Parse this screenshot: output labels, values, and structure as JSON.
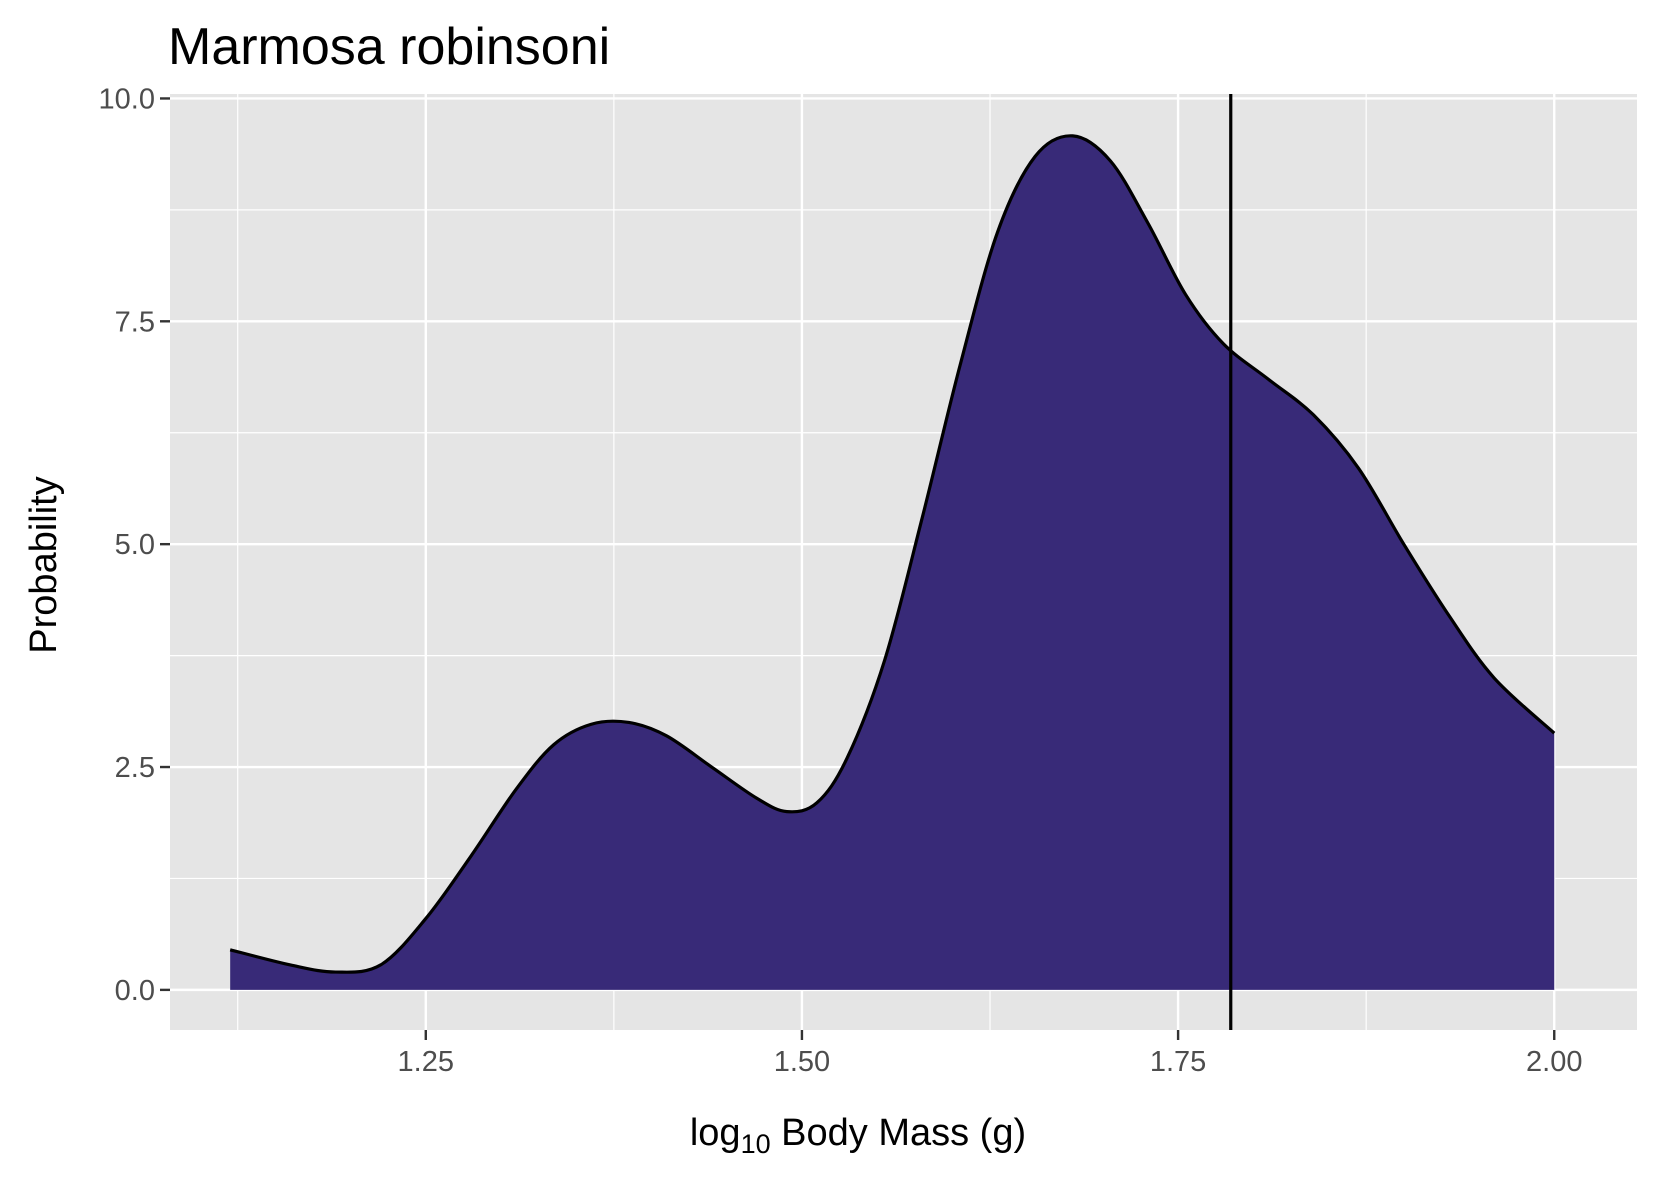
{
  "chart_data": {
    "type": "area",
    "title": "Marmosa robinsoni",
    "xlabel": {
      "prefix": "log",
      "subscript": "10",
      "suffix": " Body Mass (g)"
    },
    "ylabel": "Probability",
    "xlim": [
      1.08,
      2.055
    ],
    "ylim": [
      -0.45,
      10.05
    ],
    "x_ticks": [
      {
        "value": 1.25,
        "label": "1.25"
      },
      {
        "value": 1.5,
        "label": "1.50"
      },
      {
        "value": 1.75,
        "label": "1.75"
      },
      {
        "value": 2.0,
        "label": "2.00"
      }
    ],
    "x_minor_ticks": [
      1.125,
      1.375,
      1.625,
      1.875
    ],
    "y_ticks": [
      {
        "value": 0,
        "label": "0.0"
      },
      {
        "value": 2.5,
        "label": "2.5"
      },
      {
        "value": 5,
        "label": "5.0"
      },
      {
        "value": 7.5,
        "label": "7.5"
      },
      {
        "value": 10,
        "label": "10.0"
      }
    ],
    "y_minor_ticks": [
      1.25,
      3.75,
      6.25,
      8.75
    ],
    "grid": true,
    "series": [
      {
        "x": [
          1.12,
          1.16,
          1.19,
          1.22,
          1.25,
          1.28,
          1.31,
          1.335,
          1.36,
          1.385,
          1.41,
          1.44,
          1.47,
          1.49,
          1.51,
          1.53,
          1.555,
          1.58,
          1.605,
          1.63,
          1.655,
          1.68,
          1.705,
          1.73,
          1.755,
          1.78,
          1.81,
          1.84,
          1.87,
          1.9,
          1.93,
          1.96,
          2.0
        ],
        "y": [
          0.45,
          0.28,
          0.2,
          0.28,
          0.8,
          1.5,
          2.25,
          2.75,
          2.98,
          3.0,
          2.85,
          2.5,
          2.15,
          2.0,
          2.1,
          2.6,
          3.7,
          5.3,
          7.0,
          8.5,
          9.35,
          9.58,
          9.3,
          8.6,
          7.8,
          7.25,
          6.85,
          6.45,
          5.85,
          5.0,
          4.2,
          3.5,
          2.88
        ]
      }
    ],
    "vline": 1.785,
    "colors": {
      "fill": "#382a78",
      "outline": "#000000",
      "panel": "#e5e5e5",
      "grid": "#ffffff",
      "tick_text": "#4d4d4d"
    }
  }
}
